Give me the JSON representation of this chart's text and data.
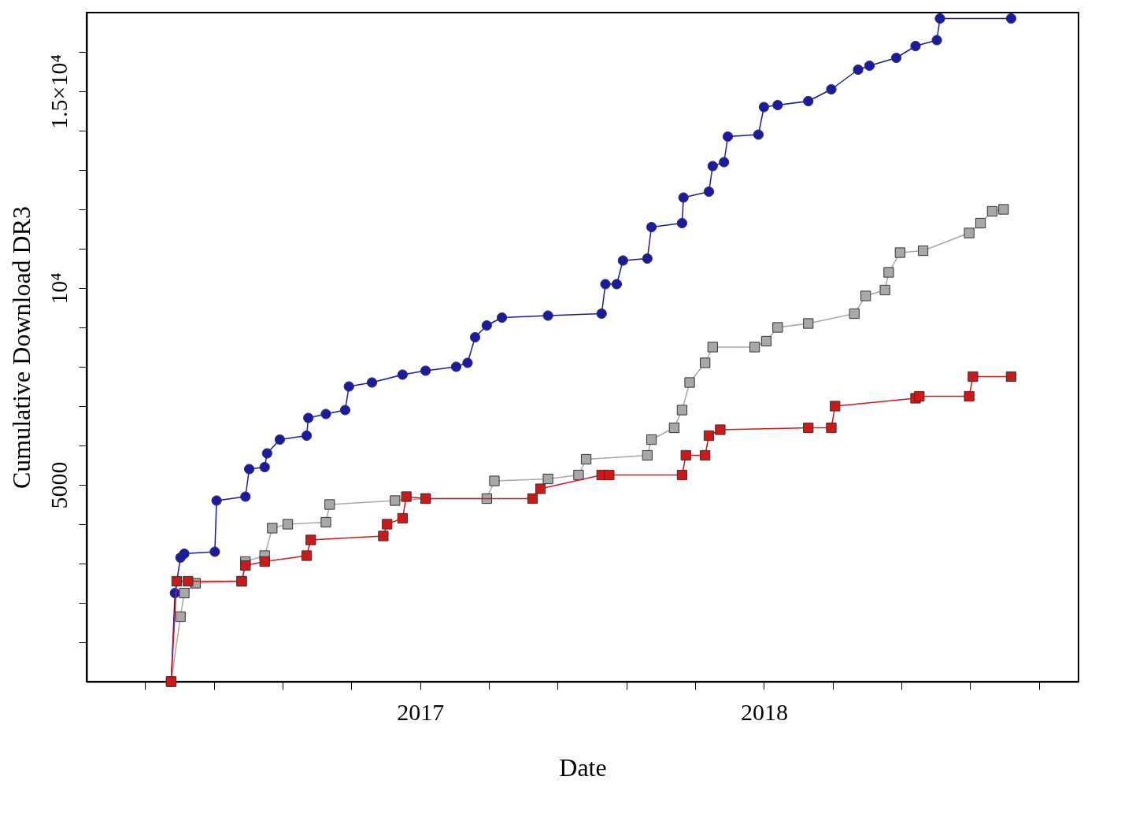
{
  "chart_data": {
    "type": "line",
    "xlabel": "Date",
    "ylabel": "Cumulative Download DR3",
    "xlim": [
      2016.03,
      2018.915
    ],
    "xticks": [
      {
        "value": 2016.2,
        "label": null
      },
      {
        "value": 2016.4,
        "label": null
      },
      {
        "value": 2016.6,
        "label": null
      },
      {
        "value": 2016.8,
        "label": null
      },
      2017,
      {
        "value": 2017.2,
        "label": null
      },
      {
        "value": 2017.4,
        "label": null
      },
      {
        "value": 2017.6,
        "label": null
      },
      {
        "value": 2017.8,
        "label": null
      },
      2018,
      {
        "value": 2018.2,
        "label": null
      },
      {
        "value": 2018.4,
        "label": null
      },
      {
        "value": 2018.6,
        "label": null
      },
      {
        "value": 2018.8,
        "label": null
      }
    ],
    "ylim": [
      0,
      17000
    ],
    "yticks": [
      {
        "value": 1000,
        "label": null
      },
      {
        "value": 2000,
        "label": null
      },
      {
        "value": 3000,
        "label": null
      },
      {
        "value": 4000,
        "label": null
      },
      5000,
      {
        "value": 6000,
        "label": null
      },
      {
        "value": 7000,
        "label": null
      },
      {
        "value": 8000,
        "label": null
      },
      {
        "value": 9000,
        "label": null
      },
      {
        "value": 10000,
        "label": "10⁴"
      },
      {
        "value": 11000,
        "label": null
      },
      {
        "value": 12000,
        "label": null
      },
      {
        "value": 13000,
        "label": null
      },
      {
        "value": 14000,
        "label": null
      },
      {
        "value": 15000,
        "label": "1.5×10⁴"
      },
      {
        "value": 16000,
        "label": null
      }
    ],
    "grid": false,
    "series": [
      {
        "color": "#1a1aa8",
        "marker": "circle",
        "x": [
          2016.276,
          2016.287,
          2016.303,
          2016.314,
          2016.403,
          2016.408,
          2016.492,
          2016.503,
          2016.548,
          2016.555,
          2016.592,
          2016.67,
          2016.675,
          2016.726,
          2016.782,
          2016.793,
          2016.86,
          2016.949,
          2017.016,
          2017.105,
          2017.138,
          2017.16,
          2017.194,
          2017.238,
          2017.372,
          2017.528,
          2017.539,
          2017.572,
          2017.59,
          2017.661,
          2017.673,
          2017.762,
          2017.766,
          2017.84,
          2017.851,
          2017.884,
          2017.895,
          2017.984,
          2018.0,
          2018.04,
          2018.129,
          2018.196,
          2018.274,
          2018.307,
          2018.385,
          2018.441,
          2018.503,
          2018.512,
          2018.719
        ],
        "values": [
          0,
          2250,
          3150,
          3250,
          3300,
          4600,
          4700,
          5400,
          5450,
          5800,
          6150,
          6250,
          6700,
          6800,
          6900,
          7500,
          7600,
          7800,
          7900,
          8000,
          8100,
          8750,
          9050,
          9250,
          9300,
          9350,
          10100,
          10100,
          10700,
          10750,
          11550,
          11650,
          12300,
          12450,
          13100,
          13200,
          13850,
          13900,
          14600,
          14650,
          14750,
          15050,
          15550,
          15650,
          15850,
          16150,
          16300,
          16850,
          16850
        ]
      },
      {
        "color": "#a8a8a8",
        "marker": "square",
        "x": [
          2016.276,
          2016.303,
          2016.314,
          2016.347,
          2016.481,
          2016.492,
          2016.548,
          2016.57,
          2016.615,
          2016.726,
          2016.737,
          2016.927,
          2017.016,
          2017.194,
          2017.216,
          2017.372,
          2017.461,
          2017.483,
          2017.661,
          2017.673,
          2017.739,
          2017.762,
          2017.784,
          2017.829,
          2017.851,
          2017.973,
          2018.007,
          2018.04,
          2018.129,
          2018.263,
          2018.296,
          2018.352,
          2018.363,
          2018.396,
          2018.463,
          2018.597,
          2018.63,
          2018.664,
          2018.697
        ],
        "values": [
          0,
          1650,
          2250,
          2500,
          2550,
          3050,
          3200,
          3900,
          4000,
          4050,
          4500,
          4600,
          4650,
          4650,
          5100,
          5150,
          5250,
          5650,
          5750,
          6150,
          6450,
          6900,
          7600,
          8100,
          8500,
          8500,
          8650,
          9000,
          9100,
          9350,
          9800,
          9950,
          10400,
          10900,
          10950,
          11400,
          11650,
          11950,
          12000
        ]
      },
      {
        "color": "#d01818",
        "marker": "square",
        "x": [
          2016.276,
          2016.292,
          2016.325,
          2016.481,
          2016.492,
          2016.548,
          2016.67,
          2016.682,
          2016.893,
          2016.904,
          2016.949,
          2016.96,
          2017.016,
          2017.327,
          2017.35,
          2017.528,
          2017.55,
          2017.762,
          2017.773,
          2017.829,
          2017.84,
          2017.873,
          2018.129,
          2018.196,
          2018.207,
          2018.441,
          2018.452,
          2018.597,
          2018.608,
          2018.719
        ],
        "values": [
          0,
          2550,
          2550,
          2550,
          2950,
          3050,
          3200,
          3600,
          3700,
          4000,
          4150,
          4700,
          4650,
          4650,
          4900,
          5250,
          5250,
          5250,
          5750,
          5750,
          6250,
          6400,
          6450,
          6450,
          7000,
          7200,
          7250,
          7250,
          7750,
          7750
        ]
      }
    ]
  }
}
